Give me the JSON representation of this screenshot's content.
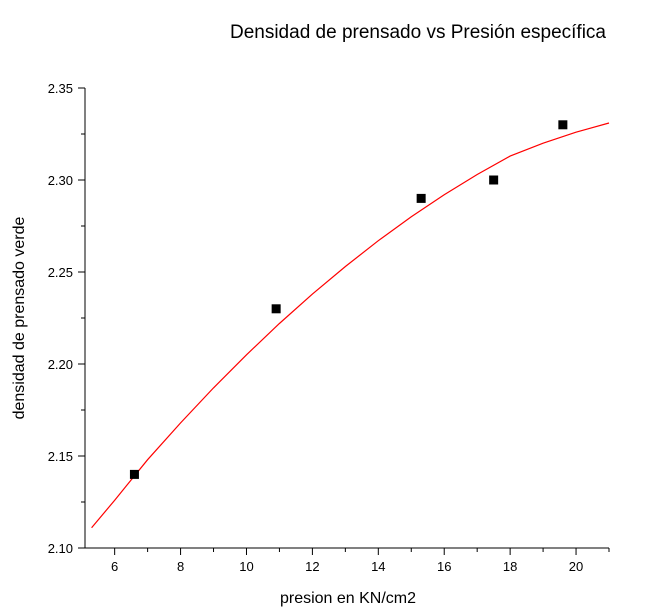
{
  "chart_data": {
    "type": "scatter",
    "title": "Densidad de prensado vs Presión específica",
    "xlabel": "presion en KN/cm2",
    "ylabel": "densidad de prensado verde",
    "xlim": [
      5.1,
      21
    ],
    "ylim": [
      2.1,
      2.35
    ],
    "xticks": [
      6,
      8,
      10,
      12,
      14,
      16,
      18,
      20
    ],
    "yticks": [
      2.1,
      2.15,
      2.2,
      2.25,
      2.3,
      2.35
    ],
    "xtick_labels": [
      "6",
      "8",
      "10",
      "12",
      "14",
      "16",
      "18",
      "20"
    ],
    "ytick_labels": [
      "2.10",
      "2.15",
      "2.20",
      "2.25",
      "2.30",
      "2.35"
    ],
    "grid": false,
    "legend": "none",
    "series": [
      {
        "type": "scatter",
        "marker": "square",
        "color": "#000000",
        "x": [
          6.6,
          10.9,
          15.3,
          17.5,
          19.6
        ],
        "y": [
          2.14,
          2.23,
          2.29,
          2.3,
          2.33
        ]
      },
      {
        "type": "line",
        "color": "#ff0000",
        "x": [
          5.3,
          6.0,
          7.0,
          8.0,
          9.0,
          10.0,
          11.0,
          12.0,
          13.0,
          14.0,
          15.0,
          16.0,
          17.0,
          18.0,
          19.0,
          20.0,
          21.0
        ],
        "y": [
          2.111,
          2.126,
          2.148,
          2.168,
          2.187,
          2.205,
          2.222,
          2.238,
          2.253,
          2.267,
          2.28,
          2.292,
          2.303,
          2.313,
          2.32,
          2.326,
          2.331
        ]
      }
    ]
  }
}
